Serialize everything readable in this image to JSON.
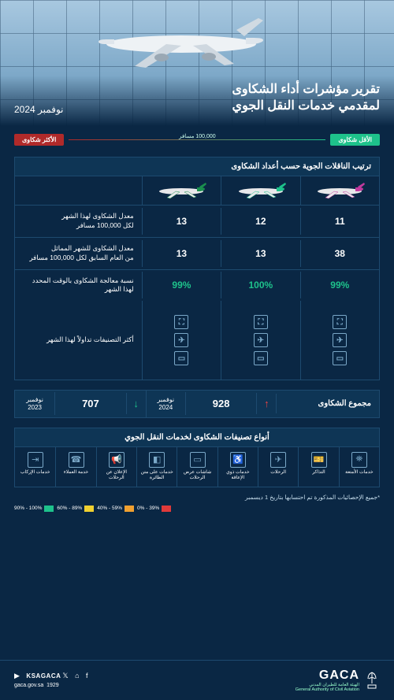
{
  "header": {
    "title_l1": "تقرير مؤشرات أداء الشكاوى",
    "title_l2": "لمقدمي خدمات النقل الجوي",
    "date": "نوفمبر 2024"
  },
  "legend": {
    "least": "الأقل شكاوى",
    "most": "الأكثر شكاوى",
    "mid": "100,000 مسافر",
    "least_color": "#1ec28b",
    "most_color": "#b02a2a"
  },
  "table": {
    "title": "ترتيب الناقلات الجوية حسب أعداد الشكاوى",
    "airlines": [
      {
        "tail": "#c23a9e",
        "body": "#e8e8ea"
      },
      {
        "tail": "#1ec28b",
        "body": "#e8e8ea"
      },
      {
        "tail": "#1a8f4e",
        "body": "#e8e8ea"
      }
    ],
    "rows": [
      {
        "label_l1": "معدل الشكاوى لهذا الشهر",
        "label_l2": "لكل 100,000 مسافر",
        "vals": [
          "11",
          "12",
          "13"
        ],
        "colors": [
          "#fff",
          "#fff",
          "#fff"
        ]
      },
      {
        "label_l1": "معدل الشكاوى للشهر المماثل",
        "label_l2": "من العام السابق لكل 100,000 مسافر",
        "vals": [
          "38",
          "13",
          "13"
        ],
        "colors": [
          "#fff",
          "#fff",
          "#fff"
        ]
      },
      {
        "label_l1": "نسبة معالجة الشكاوى بالوقت المحدد",
        "label_l2": "لهذا الشهر",
        "vals": [
          "99%",
          "100%",
          "99%"
        ],
        "colors": [
          "#1ec28b",
          "#1ec28b",
          "#1ec28b"
        ]
      }
    ],
    "icons_label": "أكثر التصنيفات تداولاً لهذا الشهر",
    "icon_stacks": [
      [
        "⛶",
        "✈",
        "▭"
      ],
      [
        "⛶",
        "✈",
        "▭"
      ],
      [
        "⛶",
        "✈",
        "▭"
      ]
    ]
  },
  "totals": {
    "label": "مجموع الشكاوى",
    "current": {
      "value": "928",
      "year_l1": "نوفمبر",
      "year_l2": "2024",
      "arrow": "↑",
      "arrow_color": "#e44"
    },
    "prev": {
      "value": "707",
      "year_l1": "نوفمبر",
      "year_l2": "2023",
      "arrow": "↓",
      "arrow_color": "#1ec28b"
    }
  },
  "categories": {
    "title": "أنواع تصنيفات الشكاوى لخدمات النقل الجوي",
    "items": [
      {
        "icon": "⛯",
        "label": "خدمات الأمتعة"
      },
      {
        "icon": "🎫",
        "label": "التذاكر"
      },
      {
        "icon": "✈",
        "label": "الرحلات"
      },
      {
        "icon": "♿",
        "label": "خدمات ذوي الإعاقة"
      },
      {
        "icon": "▭",
        "label": "شاشات عرض الرحلات"
      },
      {
        "icon": "◧",
        "label": "خدمات على متن الطائرة"
      },
      {
        "icon": "📢",
        "label": "الإعلان عن الرحلات"
      },
      {
        "icon": "☎",
        "label": "خدمة العملاء"
      },
      {
        "icon": "⇥",
        "label": "خدمات الإركاب"
      }
    ]
  },
  "footnote": "*جميع الإحصائيات المذكورة تم احتسابها بتاريخ 1 ديسمبر",
  "scale": [
    {
      "color": "#e03a3a",
      "label": "39% - 0%"
    },
    {
      "color": "#f0a030",
      "label": "59% - 40%"
    },
    {
      "color": "#f0d030",
      "label": "89% - 60%"
    },
    {
      "color": "#1ec28b",
      "label": "100% - 90%"
    }
  ],
  "footer": {
    "brand": "GACA",
    "brand_ar": "الهيئة العامة للطيران المدني",
    "brand_en": "General Authority of Civil Aviation",
    "handle": "KSAGACA",
    "site": "gaca.gov.sa",
    "phone": "1929"
  }
}
